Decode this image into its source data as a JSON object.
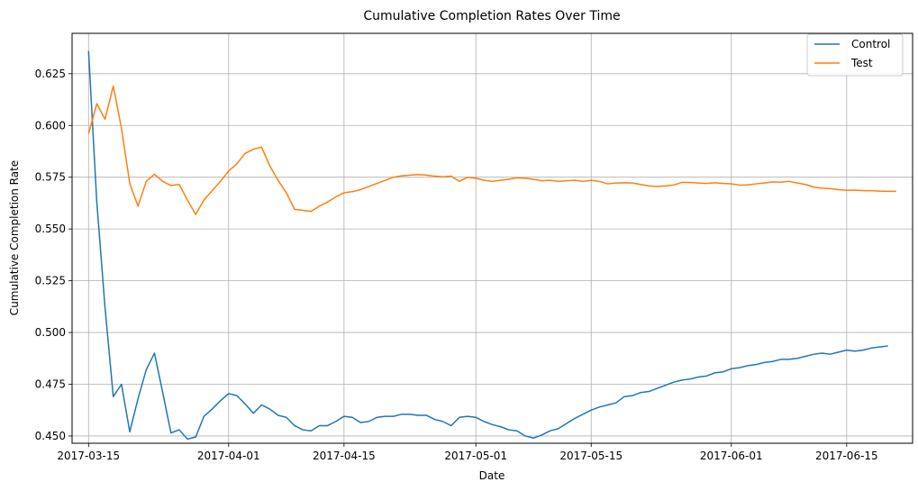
{
  "chart_data": {
    "type": "line",
    "title": "Cumulative Completion Rates Over Time",
    "xlabel": "Date",
    "ylabel": "Cumulative Completion Rate",
    "xlim": [
      "2017-03-13",
      "2017-06-23"
    ],
    "ylim": [
      0.4465,
      0.6445
    ],
    "x_ticks": [
      "2017-03-15",
      "2017-04-01",
      "2017-04-15",
      "2017-05-01",
      "2017-05-15",
      "2017-06-01",
      "2017-06-15"
    ],
    "y_ticks": [
      "0.450",
      "0.475",
      "0.500",
      "0.525",
      "0.550",
      "0.575",
      "0.600",
      "0.625"
    ],
    "grid": true,
    "legend_position": "top-right",
    "series": [
      {
        "name": "Control",
        "color": "#1f77b4",
        "points": [
          [
            "2017-03-15",
            0.636
          ],
          [
            "2017-03-16",
            0.563
          ],
          [
            "2017-03-17",
            0.512
          ],
          [
            "2017-03-18",
            0.469
          ],
          [
            "2017-03-19",
            0.475
          ],
          [
            "2017-03-20",
            0.452
          ],
          [
            "2017-03-21",
            0.468
          ],
          [
            "2017-03-22",
            0.482
          ],
          [
            "2017-03-23",
            0.49
          ],
          [
            "2017-03-24",
            0.471
          ],
          [
            "2017-03-25",
            0.4515
          ],
          [
            "2017-03-26",
            0.453
          ],
          [
            "2017-03-27",
            0.4485
          ],
          [
            "2017-03-28",
            0.4495
          ],
          [
            "2017-03-29",
            0.4595
          ],
          [
            "2017-03-30",
            0.463
          ],
          [
            "2017-03-31",
            0.467
          ],
          [
            "2017-04-01",
            0.4705
          ],
          [
            "2017-04-02",
            0.4695
          ],
          [
            "2017-04-03",
            0.4655
          ],
          [
            "2017-04-04",
            0.461
          ],
          [
            "2017-04-05",
            0.465
          ],
          [
            "2017-04-06",
            0.463
          ],
          [
            "2017-04-07",
            0.46
          ],
          [
            "2017-04-08",
            0.459
          ],
          [
            "2017-04-09",
            0.455
          ],
          [
            "2017-04-10",
            0.453
          ],
          [
            "2017-04-11",
            0.4525
          ],
          [
            "2017-04-12",
            0.455
          ],
          [
            "2017-04-13",
            0.455
          ],
          [
            "2017-04-14",
            0.457
          ],
          [
            "2017-04-15",
            0.4595
          ],
          [
            "2017-04-16",
            0.459
          ],
          [
            "2017-04-17",
            0.4565
          ],
          [
            "2017-04-18",
            0.457
          ],
          [
            "2017-04-19",
            0.459
          ],
          [
            "2017-04-20",
            0.4595
          ],
          [
            "2017-04-21",
            0.4595
          ],
          [
            "2017-04-22",
            0.4605
          ],
          [
            "2017-04-23",
            0.4605
          ],
          [
            "2017-04-24",
            0.46
          ],
          [
            "2017-04-25",
            0.46
          ],
          [
            "2017-04-26",
            0.458
          ],
          [
            "2017-04-27",
            0.457
          ],
          [
            "2017-04-28",
            0.455
          ],
          [
            "2017-04-29",
            0.459
          ],
          [
            "2017-04-30",
            0.4595
          ],
          [
            "2017-05-01",
            0.459
          ],
          [
            "2017-05-02",
            0.457
          ],
          [
            "2017-05-03",
            0.4555
          ],
          [
            "2017-05-04",
            0.4545
          ],
          [
            "2017-05-05",
            0.453
          ],
          [
            "2017-05-06",
            0.4525
          ],
          [
            "2017-05-07",
            0.45
          ],
          [
            "2017-05-08",
            0.449
          ],
          [
            "2017-05-09",
            0.4505
          ],
          [
            "2017-05-10",
            0.4525
          ],
          [
            "2017-05-11",
            0.4535
          ],
          [
            "2017-05-12",
            0.456
          ],
          [
            "2017-05-13",
            0.4585
          ],
          [
            "2017-05-14",
            0.4605
          ],
          [
            "2017-05-15",
            0.4625
          ],
          [
            "2017-05-16",
            0.464
          ],
          [
            "2017-05-17",
            0.465
          ],
          [
            "2017-05-18",
            0.466
          ],
          [
            "2017-05-19",
            0.469
          ],
          [
            "2017-05-20",
            0.4695
          ],
          [
            "2017-05-21",
            0.471
          ],
          [
            "2017-05-22",
            0.4715
          ],
          [
            "2017-05-23",
            0.473
          ],
          [
            "2017-05-24",
            0.4745
          ],
          [
            "2017-05-25",
            0.476
          ],
          [
            "2017-05-26",
            0.477
          ],
          [
            "2017-05-27",
            0.4775
          ],
          [
            "2017-05-28",
            0.4785
          ],
          [
            "2017-05-29",
            0.479
          ],
          [
            "2017-05-30",
            0.4805
          ],
          [
            "2017-05-31",
            0.481
          ],
          [
            "2017-06-01",
            0.4825
          ],
          [
            "2017-06-02",
            0.483
          ],
          [
            "2017-06-03",
            0.484
          ],
          [
            "2017-06-04",
            0.4845
          ],
          [
            "2017-06-05",
            0.4855
          ],
          [
            "2017-06-06",
            0.486
          ],
          [
            "2017-06-07",
            0.487
          ],
          [
            "2017-06-08",
            0.487
          ],
          [
            "2017-06-09",
            0.4875
          ],
          [
            "2017-06-10",
            0.4885
          ],
          [
            "2017-06-11",
            0.4895
          ],
          [
            "2017-06-12",
            0.49
          ],
          [
            "2017-06-13",
            0.4895
          ],
          [
            "2017-06-14",
            0.4905
          ],
          [
            "2017-06-15",
            0.4915
          ],
          [
            "2017-06-16",
            0.491
          ],
          [
            "2017-06-17",
            0.4915
          ],
          [
            "2017-06-18",
            0.4925
          ],
          [
            "2017-06-19",
            0.493
          ],
          [
            "2017-06-20",
            0.4935
          ]
        ]
      },
      {
        "name": "Test",
        "color": "#ff7f0e",
        "points": [
          [
            "2017-03-15",
            0.596
          ],
          [
            "2017-03-16",
            0.6105
          ],
          [
            "2017-03-17",
            0.603
          ],
          [
            "2017-03-18",
            0.619
          ],
          [
            "2017-03-19",
            0.5985
          ],
          [
            "2017-03-20",
            0.572
          ],
          [
            "2017-03-21",
            0.561
          ],
          [
            "2017-03-22",
            0.573
          ],
          [
            "2017-03-23",
            0.5765
          ],
          [
            "2017-03-24",
            0.573
          ],
          [
            "2017-03-25",
            0.571
          ],
          [
            "2017-03-26",
            0.5715
          ],
          [
            "2017-03-27",
            0.564
          ],
          [
            "2017-03-28",
            0.557
          ],
          [
            "2017-03-29",
            0.564
          ],
          [
            "2017-03-30",
            0.5685
          ],
          [
            "2017-03-31",
            0.573
          ],
          [
            "2017-04-01",
            0.578
          ],
          [
            "2017-04-02",
            0.5815
          ],
          [
            "2017-04-03",
            0.5865
          ],
          [
            "2017-04-04",
            0.5885
          ],
          [
            "2017-04-05",
            0.5895
          ],
          [
            "2017-04-06",
            0.5805
          ],
          [
            "2017-04-07",
            0.5735
          ],
          [
            "2017-04-08",
            0.5675
          ],
          [
            "2017-04-09",
            0.5595
          ],
          [
            "2017-04-10",
            0.559
          ],
          [
            "2017-04-11",
            0.5585
          ],
          [
            "2017-04-12",
            0.561
          ],
          [
            "2017-04-13",
            0.563
          ],
          [
            "2017-04-14",
            0.5655
          ],
          [
            "2017-04-15",
            0.5675
          ],
          [
            "2017-04-16",
            0.568
          ],
          [
            "2017-04-17",
            0.569
          ],
          [
            "2017-04-18",
            0.5705
          ],
          [
            "2017-04-19",
            0.572
          ],
          [
            "2017-04-20",
            0.5735
          ],
          [
            "2017-04-21",
            0.575
          ],
          [
            "2017-04-22",
            0.5757
          ],
          [
            "2017-04-23",
            0.576
          ],
          [
            "2017-04-24",
            0.5763
          ],
          [
            "2017-04-25",
            0.576
          ],
          [
            "2017-04-26",
            0.5755
          ],
          [
            "2017-04-27",
            0.5752
          ],
          [
            "2017-04-28",
            0.5755
          ],
          [
            "2017-04-29",
            0.573
          ],
          [
            "2017-04-30",
            0.575
          ],
          [
            "2017-05-01",
            0.5745
          ],
          [
            "2017-05-02",
            0.5735
          ],
          [
            "2017-05-03",
            0.573
          ],
          [
            "2017-05-04",
            0.5735
          ],
          [
            "2017-05-05",
            0.574
          ],
          [
            "2017-05-06",
            0.5747
          ],
          [
            "2017-05-07",
            0.5745
          ],
          [
            "2017-05-08",
            0.574
          ],
          [
            "2017-05-09",
            0.5733
          ],
          [
            "2017-05-10",
            0.5735
          ],
          [
            "2017-05-11",
            0.573
          ],
          [
            "2017-05-12",
            0.5733
          ],
          [
            "2017-05-13",
            0.5735
          ],
          [
            "2017-05-14",
            0.573
          ],
          [
            "2017-05-15",
            0.5735
          ],
          [
            "2017-05-16",
            0.573
          ],
          [
            "2017-05-17",
            0.5718
          ],
          [
            "2017-05-18",
            0.5722
          ],
          [
            "2017-05-19",
            0.5723
          ],
          [
            "2017-05-20",
            0.5722
          ],
          [
            "2017-05-21",
            0.5715
          ],
          [
            "2017-05-22",
            0.5708
          ],
          [
            "2017-05-23",
            0.5705
          ],
          [
            "2017-05-24",
            0.5708
          ],
          [
            "2017-05-25",
            0.5712
          ],
          [
            "2017-05-26",
            0.5725
          ],
          [
            "2017-05-27",
            0.5725
          ],
          [
            "2017-05-28",
            0.5722
          ],
          [
            "2017-05-29",
            0.572
          ],
          [
            "2017-05-30",
            0.5723
          ],
          [
            "2017-05-31",
            0.572
          ],
          [
            "2017-06-01",
            0.5718
          ],
          [
            "2017-06-02",
            0.5712
          ],
          [
            "2017-06-03",
            0.5713
          ],
          [
            "2017-06-04",
            0.5718
          ],
          [
            "2017-06-05",
            0.5722
          ],
          [
            "2017-06-06",
            0.5727
          ],
          [
            "2017-06-07",
            0.5726
          ],
          [
            "2017-06-08",
            0.573
          ],
          [
            "2017-06-09",
            0.5722
          ],
          [
            "2017-06-10",
            0.5715
          ],
          [
            "2017-06-11",
            0.5702
          ],
          [
            "2017-06-12",
            0.5697
          ],
          [
            "2017-06-13",
            0.5695
          ],
          [
            "2017-06-14",
            0.569
          ],
          [
            "2017-06-15",
            0.5687
          ],
          [
            "2017-06-16",
            0.5688
          ],
          [
            "2017-06-17",
            0.5685
          ],
          [
            "2017-06-18",
            0.5685
          ],
          [
            "2017-06-19",
            0.5683
          ],
          [
            "2017-06-20",
            0.5682
          ],
          [
            "2017-06-21",
            0.5682
          ]
        ]
      }
    ]
  }
}
